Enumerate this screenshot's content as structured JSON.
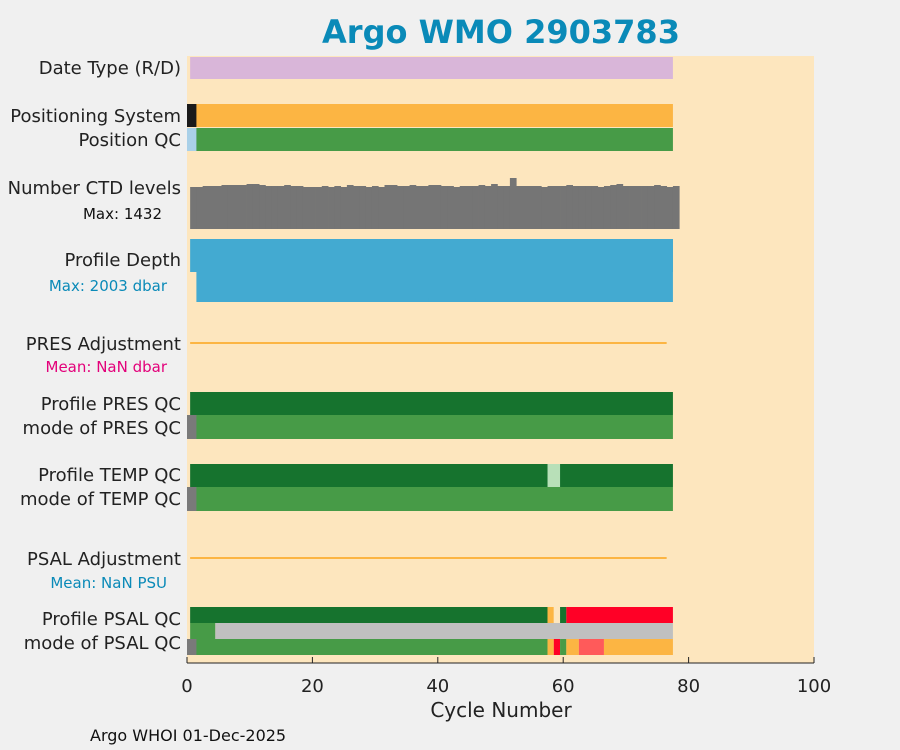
{
  "title": "Argo WMO 2903783",
  "footer": "Argo WHOI 01-Dec-2025",
  "colors": {
    "background": "#fde6be",
    "title": "#0a8ab8",
    "date_type": "#d9b6d9",
    "positioning": "#fcb543",
    "qc_good": "#479b47",
    "qc_profile_A": "#16732e",
    "ctd": "#757575",
    "depth": "#43aad1",
    "adjustment": "#fcb543",
    "mean_label": "#e3007a",
    "mean_label_psu": "#0a8ab8",
    "max_depth_label": "#0a8ab8",
    "qc_bad": "#ff0026",
    "qc_probably_bad": "#fcb543",
    "qc_changed": "#ff5a5a",
    "qc_missing": "#c0c0c0",
    "qc_light": "#b8e0b8"
  },
  "chart_data": {
    "type": "heatmap",
    "xlabel": "Cycle Number",
    "xlim": [
      0,
      100
    ],
    "xticks": [
      "0",
      "20",
      "40",
      "60",
      "80",
      "100"
    ],
    "last_cycle": 77,
    "rows": [
      {
        "label": "Date Type (R/D)",
        "value": "R for cycles 0–77"
      },
      {
        "label": "Positioning System",
        "value": "GPS; cycle 0 differs"
      },
      {
        "label": "Position QC",
        "value": "1 (good)"
      },
      {
        "label": "Number CTD levels",
        "sublabel": "Max: 1432",
        "max": 1432
      },
      {
        "label": "Profile Depth",
        "sublabel": "Max: 2003 dbar",
        "max": 2003
      },
      {
        "label": "PRES Adjustment",
        "sublabel": "Mean:  NaN dbar"
      },
      {
        "label": "Profile PRES QC",
        "value": "A"
      },
      {
        "label": "mode of PRES QC",
        "value": "1"
      },
      {
        "label": "Profile TEMP QC",
        "value": "A; cycle 58 differs"
      },
      {
        "label": "mode of TEMP QC",
        "value": "1"
      },
      {
        "label": "PSAL Adjustment",
        "sublabel": "Mean:  NaN PSU"
      },
      {
        "label": "Profile PSAL QC",
        "value": "A to 57; 58–59 mixed; 61–77 bad"
      },
      {
        "label": "mode of PSAL QC",
        "value": "1 to 57; mixed 58–66; 3 for 67–77"
      }
    ]
  }
}
